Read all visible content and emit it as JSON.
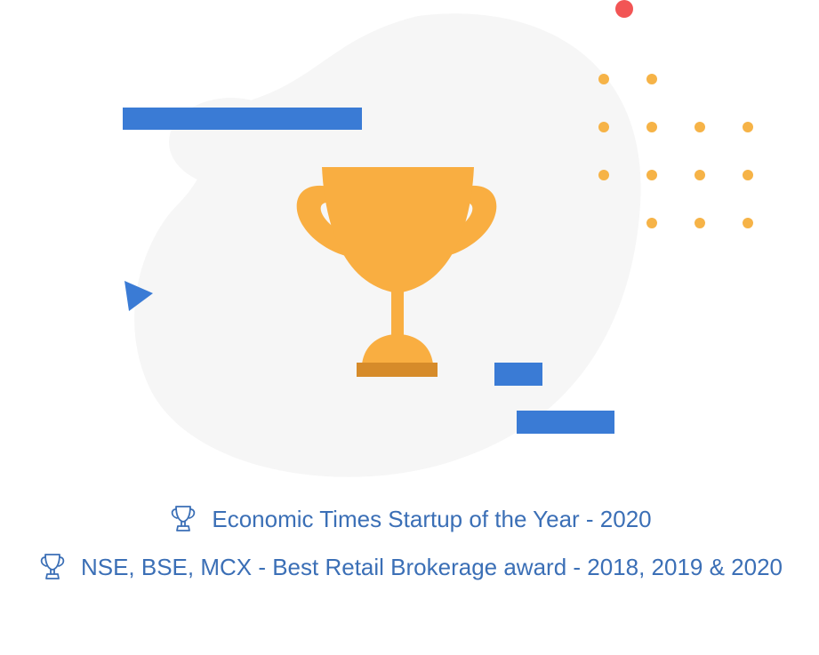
{
  "colors": {
    "accent_blue": "#3a7bd5",
    "trophy_gold": "#f9ae41",
    "trophy_base_dark": "#d68b2a",
    "dot_gold": "#f6b347",
    "dot_red": "#f25555",
    "blob_bg": "#f6f6f6",
    "award_text": "#3b6fb6"
  },
  "illustration": {
    "main_icon": "trophy-icon"
  },
  "awards": [
    {
      "icon": "trophy-outline-icon",
      "text": "Economic Times Startup of the Year - 2020"
    },
    {
      "icon": "trophy-outline-icon",
      "text": "NSE, BSE, MCX - Best Retail Brokerage award - 2018, 2019 & 2020"
    }
  ]
}
